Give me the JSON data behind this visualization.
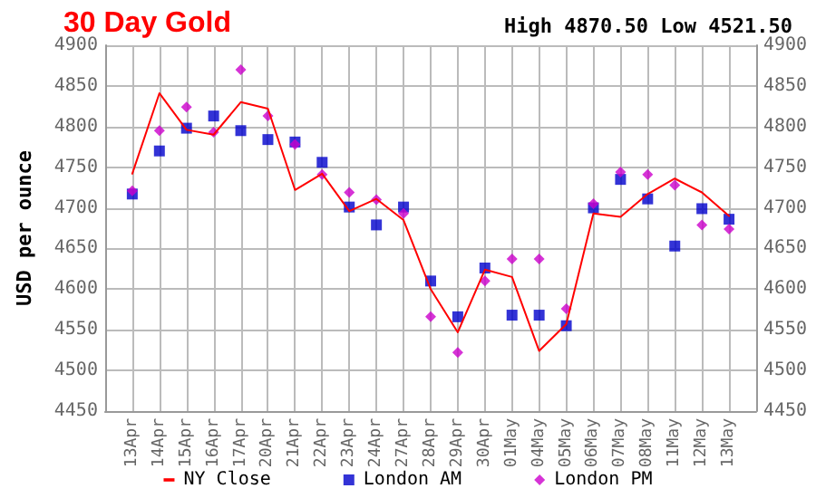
{
  "chart_data": {
    "type": "line",
    "title": "30 Day Gold",
    "subtitle": "High 4870.50 Low 4521.50",
    "ylabel": "USD per ounce",
    "categories": [
      "13Apr",
      "14Apr",
      "15Apr",
      "16Apr",
      "17Apr",
      "20Apr",
      "21Apr",
      "22Apr",
      "23Apr",
      "24Apr",
      "27Apr",
      "28Apr",
      "29Apr",
      "30Apr",
      "01May",
      "04May",
      "05May",
      "06May",
      "07May",
      "08May",
      "11May",
      "12May",
      "13May"
    ],
    "series": [
      {
        "name": "NY Close",
        "color": "#ff0000",
        "marker": "none",
        "values": [
          4742,
          4841,
          4796,
          4790,
          4830,
          4822,
          4722,
          4742,
          4696,
          4711,
          4685,
          4600,
          4547,
          4624,
          4615,
          4524,
          4557,
          4693,
          4689,
          4717,
          4736,
          4719,
          4690
        ]
      },
      {
        "name": "London AM",
        "type": "scatter",
        "color": "#0000cc",
        "marker": "square",
        "values": [
          4717,
          4770,
          4798,
          4813,
          4795,
          4784,
          4781,
          4756,
          4701,
          4679,
          4701,
          4610,
          4566,
          4626,
          4568,
          4568,
          4555,
          4700,
          4735,
          4711,
          4653,
          4699,
          4686
        ]
      },
      {
        "name": "London PM",
        "type": "scatter",
        "color": "#cc00cc",
        "marker": "diamond",
        "values": [
          4721,
          4795,
          4824,
          4793,
          4870,
          4813,
          4778,
          4741,
          4719,
          4710,
          4693,
          4566,
          4522,
          4610,
          4637,
          4637,
          4576,
          4705,
          4744,
          4741,
          4728,
          4679,
          4674
        ]
      }
    ],
    "ylim": [
      4450,
      4900
    ],
    "yticks": [
      4450,
      4500,
      4550,
      4600,
      4650,
      4700,
      4750,
      4800,
      4850,
      4900
    ],
    "y2lim": [
      4450,
      4900
    ],
    "y2ticks": [
      4450,
      4500,
      4550,
      4600,
      4650,
      4700,
      4750,
      4800,
      4850,
      4900
    ],
    "grid": true,
    "legend": "bottom"
  }
}
